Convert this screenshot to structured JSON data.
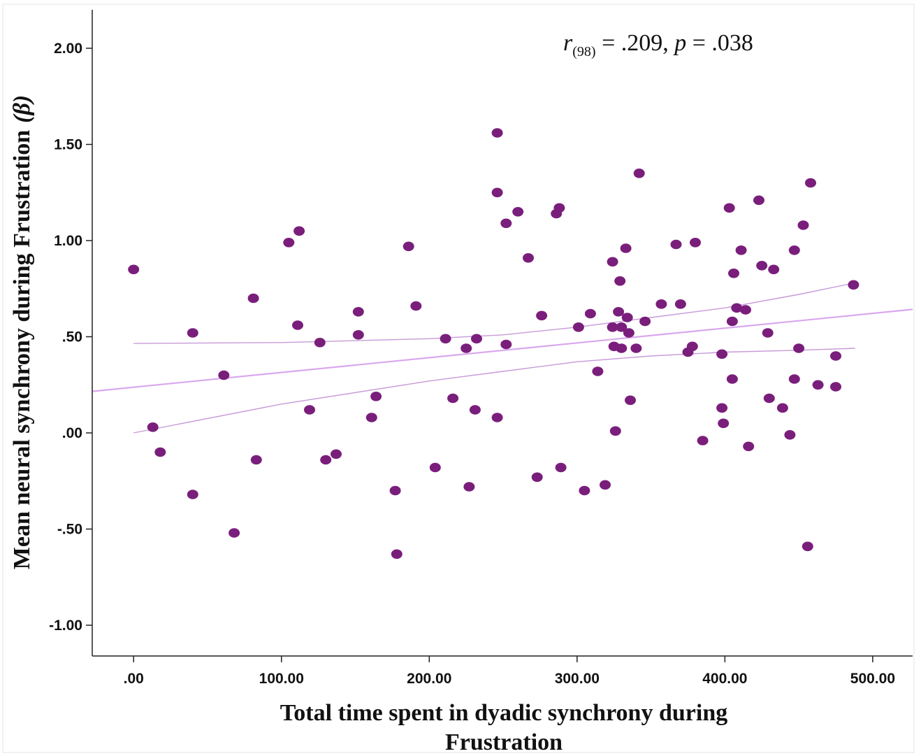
{
  "chart_data": {
    "type": "scatter",
    "title": "",
    "xlabel_lines": [
      "Total time spent in dyadic synchrony during",
      "Frustration"
    ],
    "ylabel": "Mean neural synchrony during Frustration",
    "ylabel_symbol": "(β)",
    "annotation": {
      "stat": "r",
      "df": "(98)",
      "text": " = .209, ",
      "p_label": "p",
      "p_text": " = .038"
    },
    "xlim": [
      -28,
      527
    ],
    "ylim": [
      -1.16,
      2.2
    ],
    "xticks": [
      0,
      100,
      200,
      300,
      400,
      500
    ],
    "xtick_labels": [
      ".00",
      "100.00",
      "200.00",
      "300.00",
      "400.00",
      "500.00"
    ],
    "yticks": [
      2.0,
      1.5,
      1.0,
      0.5,
      0.0,
      -0.5,
      -1.0
    ],
    "ytick_labels": [
      "2.00",
      "1.50",
      "1.00",
      ".50",
      ".00",
      "-.50",
      "-1.00"
    ],
    "grid": false,
    "point_color": "#7a1e7c",
    "fit_color": "#d9a8ee",
    "ci_color": "#c79ad8",
    "fit_line": {
      "x": [
        -28,
        527
      ],
      "y": [
        0.216,
        0.642
      ]
    },
    "ci_upper": {
      "x": [
        0,
        100,
        200,
        250,
        300,
        350,
        400,
        450,
        488
      ],
      "y": [
        0.465,
        0.47,
        0.49,
        0.51,
        0.55,
        0.6,
        0.65,
        0.72,
        0.78
      ]
    },
    "ci_lower": {
      "x": [
        0,
        100,
        200,
        250,
        300,
        350,
        400,
        450,
        488
      ],
      "y": [
        0.0,
        0.15,
        0.27,
        0.32,
        0.37,
        0.4,
        0.42,
        0.43,
        0.44
      ]
    },
    "points": [
      {
        "x": 0,
        "y": 0.85
      },
      {
        "x": 13,
        "y": 0.03
      },
      {
        "x": 18,
        "y": -0.1
      },
      {
        "x": 40,
        "y": 0.52
      },
      {
        "x": 40,
        "y": -0.32
      },
      {
        "x": 61,
        "y": 0.3
      },
      {
        "x": 68,
        "y": -0.52
      },
      {
        "x": 81,
        "y": 0.7
      },
      {
        "x": 83,
        "y": -0.14
      },
      {
        "x": 105,
        "y": 0.99
      },
      {
        "x": 111,
        "y": 0.56
      },
      {
        "x": 112,
        "y": 1.05
      },
      {
        "x": 119,
        "y": 0.12
      },
      {
        "x": 126,
        "y": 0.47
      },
      {
        "x": 130,
        "y": -0.14
      },
      {
        "x": 137,
        "y": -0.11
      },
      {
        "x": 152,
        "y": 0.63
      },
      {
        "x": 152,
        "y": 0.51
      },
      {
        "x": 161,
        "y": 0.08
      },
      {
        "x": 164,
        "y": 0.19
      },
      {
        "x": 177,
        "y": -0.3
      },
      {
        "x": 178,
        "y": -0.63
      },
      {
        "x": 186,
        "y": 0.97
      },
      {
        "x": 191,
        "y": 0.66
      },
      {
        "x": 204,
        "y": -0.18
      },
      {
        "x": 211,
        "y": 0.49
      },
      {
        "x": 216,
        "y": 0.18
      },
      {
        "x": 225,
        "y": 0.44
      },
      {
        "x": 227,
        "y": -0.28
      },
      {
        "x": 231,
        "y": 0.12
      },
      {
        "x": 232,
        "y": 0.49
      },
      {
        "x": 246,
        "y": 1.56
      },
      {
        "x": 246,
        "y": 1.25
      },
      {
        "x": 246,
        "y": 0.08
      },
      {
        "x": 252,
        "y": 1.09
      },
      {
        "x": 252,
        "y": 0.46
      },
      {
        "x": 260,
        "y": 1.15
      },
      {
        "x": 267,
        "y": 0.91
      },
      {
        "x": 273,
        "y": -0.23
      },
      {
        "x": 276,
        "y": 0.61
      },
      {
        "x": 286,
        "y": 1.14
      },
      {
        "x": 288,
        "y": 1.17
      },
      {
        "x": 289,
        "y": -0.18
      },
      {
        "x": 301,
        "y": 0.55
      },
      {
        "x": 305,
        "y": -0.3
      },
      {
        "x": 309,
        "y": 0.62
      },
      {
        "x": 314,
        "y": 0.32
      },
      {
        "x": 319,
        "y": -0.27
      },
      {
        "x": 324,
        "y": 0.89
      },
      {
        "x": 324,
        "y": 0.55
      },
      {
        "x": 325,
        "y": 0.45
      },
      {
        "x": 326,
        "y": 0.01
      },
      {
        "x": 328,
        "y": 0.63
      },
      {
        "x": 329,
        "y": 0.79
      },
      {
        "x": 330,
        "y": 0.55
      },
      {
        "x": 330,
        "y": 0.44
      },
      {
        "x": 333,
        "y": 0.96
      },
      {
        "x": 334,
        "y": 0.6
      },
      {
        "x": 335,
        "y": 0.52
      },
      {
        "x": 336,
        "y": 0.17
      },
      {
        "x": 340,
        "y": 0.44
      },
      {
        "x": 342,
        "y": 1.35
      },
      {
        "x": 346,
        "y": 0.58
      },
      {
        "x": 357,
        "y": 0.67
      },
      {
        "x": 367,
        "y": 0.98
      },
      {
        "x": 370,
        "y": 0.67
      },
      {
        "x": 375,
        "y": 0.42
      },
      {
        "x": 378,
        "y": 0.45
      },
      {
        "x": 380,
        "y": 0.99
      },
      {
        "x": 385,
        "y": -0.04
      },
      {
        "x": 398,
        "y": 0.41
      },
      {
        "x": 398,
        "y": 0.13
      },
      {
        "x": 399,
        "y": 0.05
      },
      {
        "x": 403,
        "y": 1.17
      },
      {
        "x": 405,
        "y": 0.58
      },
      {
        "x": 405,
        "y": 0.28
      },
      {
        "x": 406,
        "y": 0.83
      },
      {
        "x": 408,
        "y": 0.65
      },
      {
        "x": 411,
        "y": 0.95
      },
      {
        "x": 414,
        "y": 0.64
      },
      {
        "x": 416,
        "y": -0.07
      },
      {
        "x": 423,
        "y": 1.21
      },
      {
        "x": 425,
        "y": 0.87
      },
      {
        "x": 429,
        "y": 0.52
      },
      {
        "x": 430,
        "y": 0.18
      },
      {
        "x": 433,
        "y": 0.85
      },
      {
        "x": 439,
        "y": 0.13
      },
      {
        "x": 444,
        "y": -0.01
      },
      {
        "x": 447,
        "y": 0.95
      },
      {
        "x": 447,
        "y": 0.28
      },
      {
        "x": 450,
        "y": 0.44
      },
      {
        "x": 453,
        "y": 1.08
      },
      {
        "x": 456,
        "y": -0.59
      },
      {
        "x": 458,
        "y": 1.3
      },
      {
        "x": 463,
        "y": 0.25
      },
      {
        "x": 475,
        "y": 0.4
      },
      {
        "x": 475,
        "y": 0.24
      },
      {
        "x": 487,
        "y": 0.77
      }
    ]
  }
}
